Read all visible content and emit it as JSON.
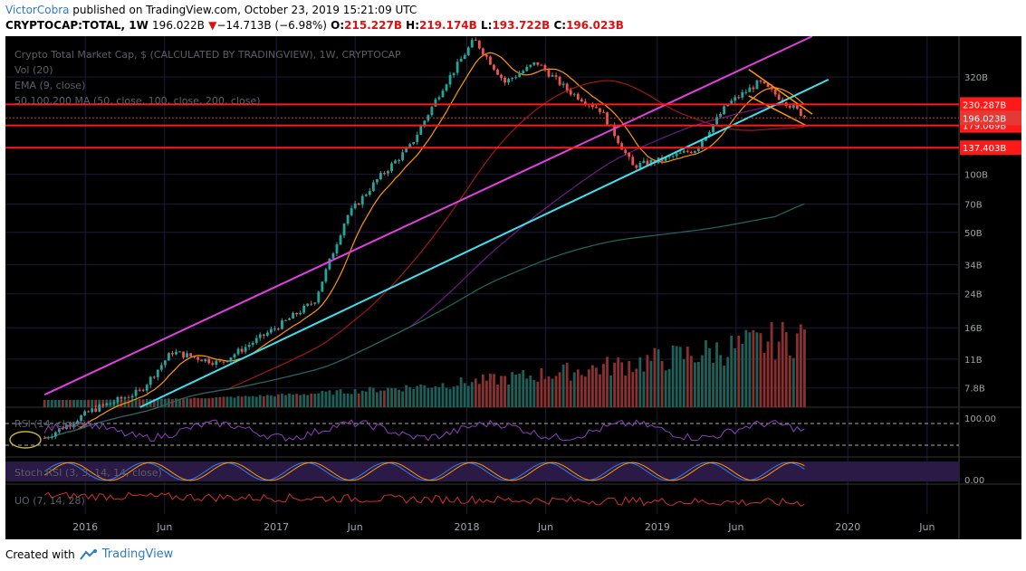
{
  "header": {
    "author": "VictorCobra",
    "published": " published on TradingView.com, October 23, 2019 15:21:09 UTC",
    "symbol": "CRYPTOCAP:TOTAL, 1W",
    "price": "196.022B",
    "change_arrow": "▼",
    "change": "−14.713B (−6.98%)",
    "o_label": "O:",
    "o_value": "215.227B",
    "h_label": "H:",
    "h_value": "219.174B",
    "l_label": "L:",
    "l_value": "193.722B",
    "c_label": "C:",
    "c_value": "196.023B"
  },
  "legend": {
    "main": "Crypto Total Market Cap, $ (CALCULATED BY TRADINGVIEW), 1W, CRYPTOCAP",
    "vol": "Vol (20)",
    "ema": "EMA (9, close)",
    "ma": "50,100,200 MA (50, close, 100, close, 200, close)",
    "rsi": "RSI (14, close)",
    "stoch": "Stoch RSI (3, 3, 14, 14, close)",
    "uo": "UO (7, 14, 28)"
  },
  "footer": {
    "created_with": "Created with",
    "brand": "TradingView"
  },
  "colors": {
    "background": "#000000",
    "up": "#26a69a",
    "down": "#ef5350",
    "magenta": "#e040e0",
    "cyan": "#40e0f0",
    "red_level": "#ff1a1a",
    "orange": "#ff9800"
  },
  "chart_data": {
    "type": "candlestick",
    "scale": "log",
    "symbol": "CRYPTOCAP:TOTAL",
    "interval": "1W",
    "x_tick_labels": [
      "2016",
      "Jun",
      "2017",
      "Jun",
      "2018",
      "Jun",
      "2019",
      "Jun",
      "2020",
      "Jun"
    ],
    "y_tick_labels": [
      "320B",
      "100B",
      "70B",
      "50B",
      "34B",
      "24B",
      "16B",
      "11B",
      "7.8B"
    ],
    "price_labels": [
      "230.287B",
      "196.023B",
      "179.069B",
      "137.403B"
    ],
    "horizontal_levels": [
      230.287,
      179.069,
      137.403
    ],
    "last_close": 196.023,
    "series": [
      {
        "x": [
          "2015-10",
          "2016-01",
          "2016-04",
          "2016-06",
          "2016-09",
          "2017-01",
          "2017-03",
          "2017-05",
          "2017-07",
          "2017-09",
          "2017-11",
          "2018-01",
          "2018-03",
          "2018-05",
          "2018-07",
          "2018-09",
          "2018-11",
          "2019-01",
          "2019-03",
          "2019-05",
          "2019-07",
          "2019-09",
          "2019-10"
        ],
        "close": [
          4.3,
          6.0,
          7.5,
          12.0,
          10.5,
          17.0,
          22.0,
          60.0,
          95.0,
          140.0,
          280.0,
          500.0,
          300.0,
          380.0,
          270.0,
          215.0,
          110.0,
          120.0,
          135.0,
          230.0,
          300.0,
          225.0,
          196.0
        ]
      }
    ],
    "rsi_levels": [
      "100.00"
    ],
    "stoch_levels": [
      "0.00"
    ]
  }
}
